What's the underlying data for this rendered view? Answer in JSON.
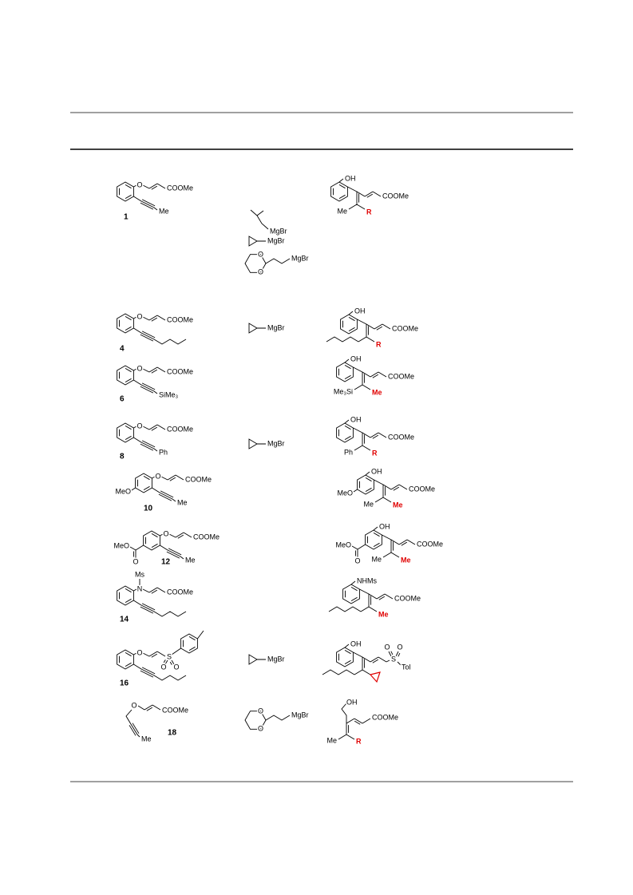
{
  "table": {
    "rows": [
      {
        "substrate": {
          "labels": [
            "O",
            "COOMe",
            "Me"
          ],
          "compound": "1"
        },
        "reagents": [
          "MgBr",
          "MgBr",
          "O",
          "O",
          "MgBr"
        ],
        "product": [
          "OH",
          "COOMe",
          "Me",
          "R"
        ]
      },
      {
        "substrate": {
          "labels": [
            "O",
            "COOMe"
          ],
          "compound": "4"
        },
        "reagents": [
          "MgBr"
        ],
        "product": [
          "OH",
          "COOMe",
          "R"
        ]
      },
      {
        "substrate": {
          "labels": [
            "O",
            "COOMe",
            "SiMe₃"
          ],
          "compound": "6"
        },
        "reagents": [],
        "product": [
          "OH",
          "COOMe",
          "Me₃Si",
          "Me"
        ]
      },
      {
        "substrate": {
          "labels": [
            "O",
            "COOMe",
            "Ph"
          ],
          "compound": "8"
        },
        "reagents": [
          "MgBr"
        ],
        "product": [
          "OH",
          "COOMe",
          "Ph",
          "R"
        ]
      },
      {
        "substrate": {
          "labels": [
            "MeO",
            "O",
            "COOMe",
            "Me"
          ],
          "compound": "10"
        },
        "reagents": [],
        "product": [
          "MeO",
          "OH",
          "COOMe",
          "Me",
          "Me"
        ]
      },
      {
        "substrate": {
          "labels": [
            "MeO",
            "O",
            "O",
            "COOMe",
            "Me"
          ],
          "compound": "12"
        },
        "reagents": [],
        "product": [
          "MeO",
          "O",
          "OH",
          "COOMe",
          "Me",
          "Me"
        ]
      },
      {
        "substrate": {
          "labels": [
            "Ms",
            "N",
            "COOMe"
          ],
          "compound": "14"
        },
        "reagents": [],
        "product": [
          "NHMs",
          "COOMe",
          "Me"
        ]
      },
      {
        "substrate": {
          "labels": [
            "O",
            "S",
            "O",
            "O"
          ],
          "compound": "16"
        },
        "reagents": [
          "MgBr"
        ],
        "product": [
          "OH",
          "S",
          "O",
          "O",
          "Tol"
        ]
      },
      {
        "substrate": {
          "labels": [
            "O",
            "COOMe",
            "Me"
          ],
          "compound": "18"
        },
        "reagents": [
          "O",
          "O",
          "MgBr"
        ],
        "product": [
          "OH",
          "COOMe",
          "Me",
          "R"
        ]
      }
    ]
  }
}
